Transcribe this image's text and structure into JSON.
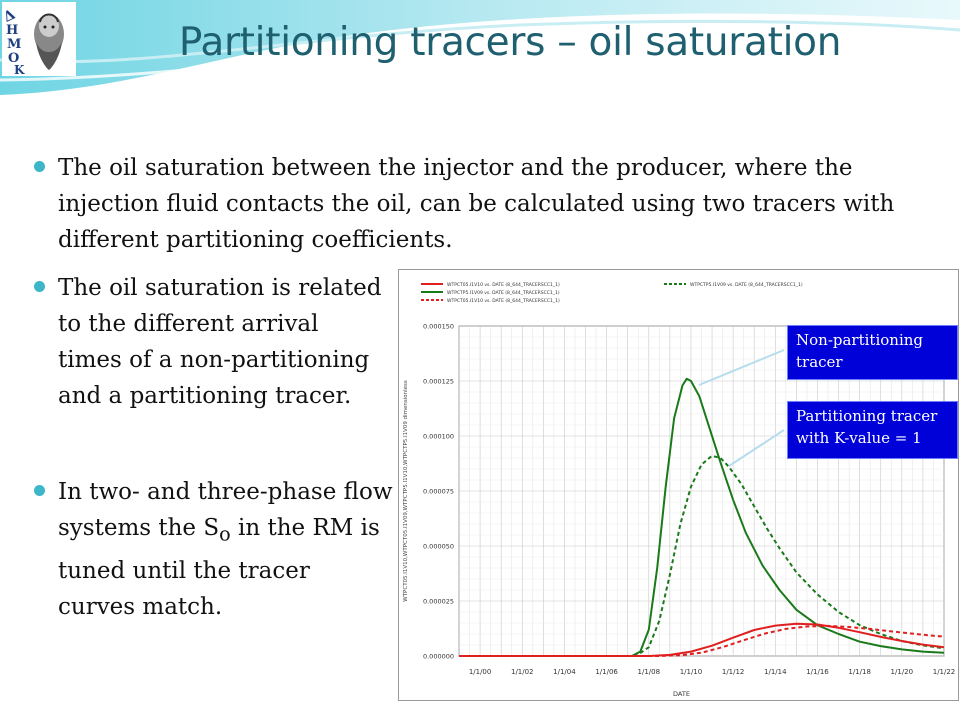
{
  "slide": {
    "title": "Partitioning tracers – oil saturation",
    "logo_text": "ΔΗΜΟΚΡΙΤΟΣ",
    "bullets": [
      {
        "text": "The oil saturation between the injector and the producer, where the injection fluid contacts the oil, can be calculated using two tracers with different partitioning coefficients."
      },
      {
        "text": "The oil saturation is related to the different arrival times of a non-partitioning and a partitioning tracer."
      },
      {
        "text_before": "In two- and three-phase flow systems the S",
        "subscript": "o",
        "text_after": " in the RM is tuned until the tracer curves match."
      }
    ],
    "callouts": [
      "Non-partitioning tracer",
      "Partitioning tracer with K-value = 1"
    ]
  },
  "colors": {
    "title": "#1e5f70",
    "bullet": "#3cb6c8",
    "green": "#1a7a1a",
    "red": "#e02020",
    "callout_bg": "#0000d8"
  },
  "chart_data": {
    "type": "line",
    "xlabel": "DATE",
    "ylabel": "WTPCT05.I1V10,WTPCT05.I1V09,WTPCTP5.I1V10,WTPCTP5.I1V09 dimensionless",
    "x_ticks": [
      "1/1/00",
      "1/1/02",
      "1/1/04",
      "1/1/06",
      "1/1/08",
      "1/1/10",
      "1/1/12",
      "1/1/14",
      "1/1/16",
      "1/1/18",
      "1/1/20",
      "1/1/22"
    ],
    "y_ticks": [
      "0.000000",
      "0.000025",
      "0.000050",
      "0.000075",
      "0.000100",
      "0.000125",
      "0.000150"
    ],
    "xlim": [
      0,
      23
    ],
    "ylim": [
      0,
      0.00015
    ],
    "grid": true,
    "legend": [
      {
        "label": "WTPCT05.I1V10 vs. DATE (8_644_TRACERSCC1_1)",
        "color": "#e02020",
        "dash": "solid"
      },
      {
        "label": "WTPCTP5.I1V09 vs. DATE (8_644_TRACERSCC1_1)",
        "color": "#1a7a1a",
        "dash": "solid"
      },
      {
        "label": "WTPCT05.I1V10 vs. DATE (8_644_TRACERSCC1_1)",
        "color": "#e02020",
        "dash": "dashed"
      },
      {
        "label": "WTPCTP5.I1V09 vs. DATE (8_644_TRACERSCC1_1)",
        "color": "#1a7a1a",
        "dash": "dashed"
      }
    ],
    "series": [
      {
        "color": "#1a7a1a",
        "dash": "solid",
        "x": [
          0,
          8.2,
          8.6,
          9,
          9.4,
          9.8,
          10.2,
          10.6,
          10.8,
          11,
          11.4,
          11.8,
          12.4,
          13,
          13.6,
          14.4,
          15.2,
          16,
          17,
          18,
          19,
          20,
          21,
          22,
          23
        ],
        "y": [
          0,
          0,
          2e-06,
          1.2e-05,
          4e-05,
          7.7e-05,
          0.000108,
          0.000123,
          0.000126,
          0.000125,
          0.000118,
          0.000106,
          8.8e-05,
          7.1e-05,
          5.6e-05,
          4.1e-05,
          3e-05,
          2.1e-05,
          1.4e-05,
          1e-05,
          6.5e-06,
          4.5e-06,
          3e-06,
          2e-06,
          1.5e-06
        ]
      },
      {
        "color": "#1a7a1a",
        "dash": "dashed",
        "x": [
          0,
          8.4,
          9,
          9.5,
          10,
          10.5,
          11,
          11.5,
          12,
          12.4,
          12.8,
          13.4,
          14,
          14.6,
          15.2,
          16,
          17,
          18,
          19,
          20,
          21,
          22,
          23
        ],
        "y": [
          0,
          0,
          4e-06,
          1.6e-05,
          3.7e-05,
          6e-05,
          7.7e-05,
          8.7e-05,
          9.1e-05,
          9e-05,
          8.6e-05,
          7.8e-05,
          6.8e-05,
          5.8e-05,
          4.9e-05,
          3.8e-05,
          2.8e-05,
          2e-05,
          1.4e-05,
          1e-05,
          6.8e-06,
          4.8e-06,
          3.5e-06
        ]
      },
      {
        "color": "#e02020",
        "dash": "solid",
        "x": [
          0,
          9,
          10,
          11,
          12,
          13,
          14,
          15,
          16,
          17,
          18,
          19,
          20,
          21,
          22,
          23
        ],
        "y": [
          0,
          0,
          5e-07,
          2e-06,
          4.7e-06,
          8.3e-06,
          1.18e-05,
          1.38e-05,
          1.47e-05,
          1.43e-05,
          1.28e-05,
          1.08e-05,
          8.7e-06,
          6.8e-06,
          5.2e-06,
          4e-06
        ]
      },
      {
        "color": "#e02020",
        "dash": "dashed",
        "x": [
          0,
          9.5,
          10.5,
          11.5,
          12.5,
          13.5,
          14.5,
          15.5,
          16.5,
          17.5,
          18.5,
          19.5,
          20.5,
          21.5,
          22.5,
          23
        ],
        "y": [
          0,
          0,
          3e-07,
          1.5e-06,
          4e-06,
          7.2e-06,
          1.02e-05,
          1.23e-05,
          1.34e-05,
          1.37e-05,
          1.32e-05,
          1.23e-05,
          1.12e-05,
          1.02e-05,
          9.2e-06,
          8.8e-06
        ]
      }
    ]
  }
}
